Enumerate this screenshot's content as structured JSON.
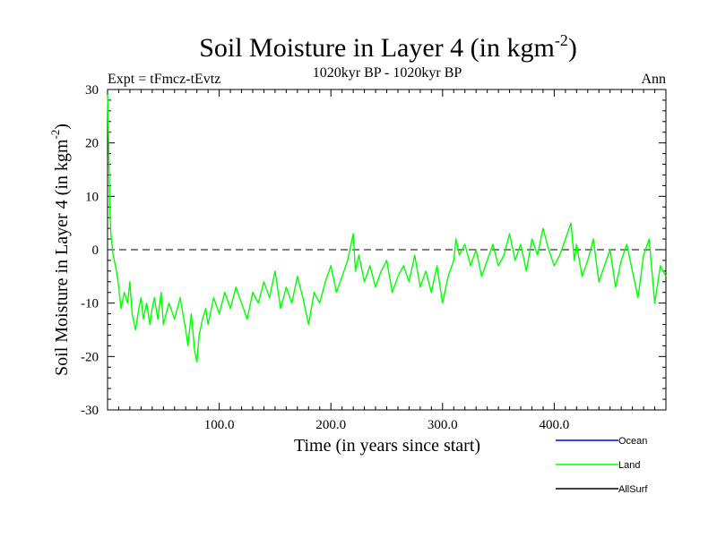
{
  "chart_data": {
    "type": "line",
    "title": "Soil Moisture in Layer 4 (in kgm",
    "title_sup": "-2",
    "title_close": ")",
    "subtitle": "1020kyr BP - 1020kyr BP",
    "expt_label": "Expt = tFmcz-tEvtz",
    "season": "Ann",
    "xlabel": "Time (in years since start)",
    "ylabel": "Soil Moisture in Layer 4 (in kgm",
    "ylabel_sup": "-2",
    "ylabel_close": ")",
    "xlim": [
      0,
      500
    ],
    "ylim": [
      -30,
      30
    ],
    "x_ticks": [
      100,
      200,
      300,
      400
    ],
    "x_tick_labels": [
      "100.0",
      "200.0",
      "300.0",
      "400.0"
    ],
    "y_ticks": [
      -30,
      -20,
      -10,
      0,
      10,
      20,
      30
    ],
    "y_tick_labels": [
      "-30",
      "-20",
      "-10",
      "0",
      "10",
      "20",
      "30"
    ],
    "reference_line": 0,
    "legend": [
      {
        "name": "Ocean",
        "color": "#0000ff"
      },
      {
        "name": "Land",
        "color": "#00ff00"
      },
      {
        "name": "AllSurf",
        "color": "#000000"
      }
    ],
    "series": [
      {
        "name": "Land",
        "color": "#00ff00",
        "x": [
          0,
          1,
          2,
          3,
          4,
          5,
          6,
          8,
          10,
          12,
          15,
          18,
          20,
          22,
          25,
          28,
          30,
          32,
          35,
          38,
          40,
          42,
          45,
          48,
          50,
          55,
          60,
          65,
          70,
          72,
          75,
          78,
          80,
          82,
          85,
          88,
          90,
          95,
          100,
          105,
          110,
          115,
          120,
          125,
          130,
          135,
          140,
          145,
          150,
          155,
          160,
          165,
          170,
          175,
          180,
          185,
          190,
          195,
          200,
          205,
          210,
          215,
          220,
          222,
          225,
          230,
          235,
          240,
          245,
          250,
          255,
          260,
          265,
          270,
          275,
          280,
          285,
          290,
          295,
          300,
          305,
          310,
          312,
          315,
          320,
          325,
          330,
          335,
          340,
          345,
          350,
          355,
          360,
          365,
          370,
          375,
          380,
          385,
          390,
          395,
          400,
          405,
          410,
          415,
          418,
          420,
          425,
          430,
          435,
          440,
          445,
          450,
          455,
          460,
          465,
          470,
          475,
          480,
          485,
          490,
          495,
          500
        ],
        "values": [
          29,
          20,
          8,
          3,
          1,
          -1,
          -2,
          -4,
          -7,
          -11,
          -8,
          -10,
          -6,
          -12,
          -15,
          -11,
          -9,
          -13,
          -10,
          -14,
          -11,
          -9,
          -13,
          -8,
          -14,
          -10,
          -13,
          -9,
          -15,
          -18,
          -12,
          -19,
          -21,
          -16,
          -13,
          -11,
          -14,
          -9,
          -12,
          -8,
          -11,
          -7,
          -10,
          -13,
          -8,
          -10,
          -6,
          -9,
          -4,
          -11,
          -7,
          -10,
          -5,
          -9,
          -14,
          -8,
          -10,
          -6,
          -3,
          -8,
          -5,
          -2,
          3,
          -4,
          -1,
          -6,
          -3,
          -7,
          -4,
          -2,
          -8,
          -5,
          -3,
          -6,
          -1,
          -7,
          -4,
          -8,
          -3,
          -10,
          -5,
          -2,
          2,
          -1,
          1,
          -3,
          0,
          -5,
          -2,
          1,
          -3,
          -1,
          3,
          -2,
          1,
          -4,
          2,
          -1,
          4,
          0,
          -3,
          -1,
          2,
          5,
          -2,
          1,
          -5,
          -2,
          2,
          -6,
          -3,
          0,
          -7,
          -2,
          1,
          -4,
          -9,
          -1,
          2,
          -10,
          -3,
          -5
        ]
      }
    ]
  }
}
